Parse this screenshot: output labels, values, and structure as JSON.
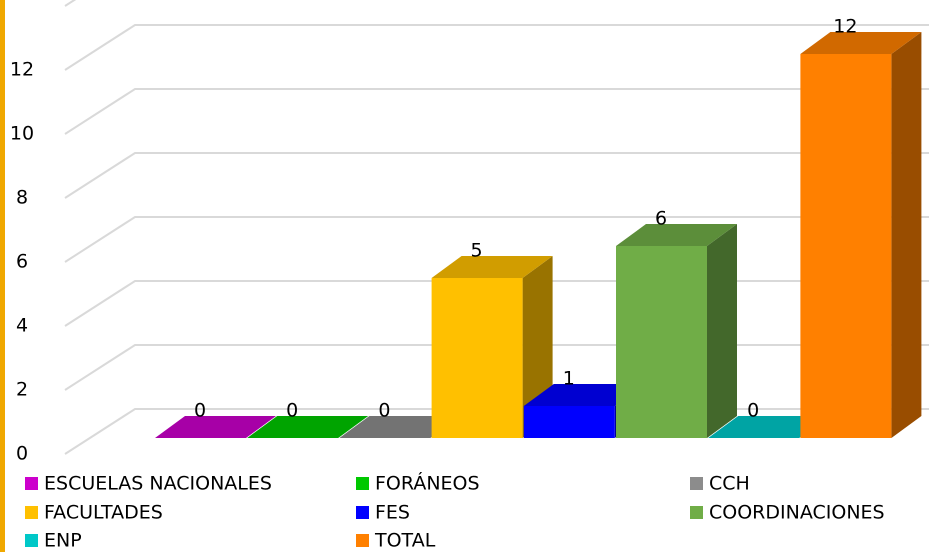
{
  "chart_data": {
    "type": "bar",
    "series": [
      {
        "name": "ESCUELAS NACIONALES",
        "color": "#cc00cc",
        "values": [
          0
        ]
      },
      {
        "name": "FORÁNEOS",
        "color": "#00c800",
        "values": [
          0
        ]
      },
      {
        "name": "CCH",
        "color": "#8c8c8c",
        "values": [
          0
        ]
      },
      {
        "name": "FACULTADES",
        "color": "#ffc000",
        "values": [
          5
        ]
      },
      {
        "name": "FES",
        "color": "#0000ff",
        "values": [
          1
        ]
      },
      {
        "name": "COORDINACIONES",
        "color": "#70ad47",
        "values": [
          6
        ]
      },
      {
        "name": "ENP",
        "color": "#00c8c8",
        "values": [
          0
        ]
      },
      {
        "name": "TOTAL",
        "color": "#ff8000",
        "values": [
          12
        ]
      }
    ],
    "ylim": [
      0,
      14
    ],
    "yticks": [
      0,
      2,
      4,
      6,
      8,
      10,
      12
    ],
    "grid": true
  }
}
